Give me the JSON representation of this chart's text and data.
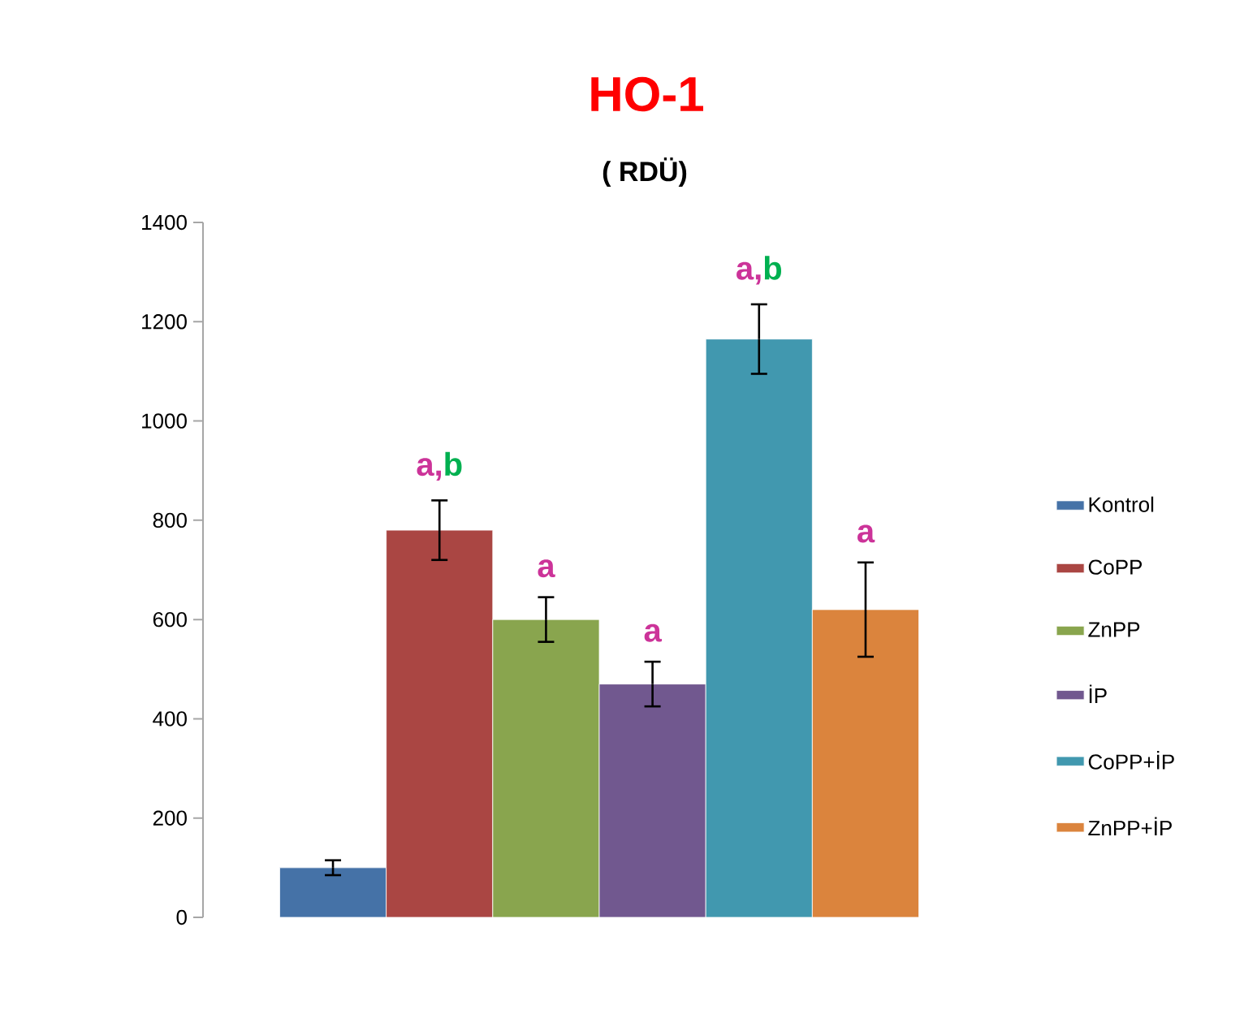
{
  "chart_data": {
    "type": "bar",
    "title": "HO-1",
    "subtitle": "( RDÜ)",
    "categories": [
      null
    ],
    "series": [
      {
        "name": "Kontrol",
        "color": "#4572a7",
        "values": [
          100
        ],
        "errors": [
          15
        ]
      },
      {
        "name": "CoPP",
        "color": "#aa4643",
        "values": [
          780
        ],
        "errors": [
          60
        ]
      },
      {
        "name": "ZnPP",
        "color": "#89a54e",
        "values": [
          600
        ],
        "errors": [
          45
        ]
      },
      {
        "name": "İP",
        "color": "#71588f",
        "values": [
          470
        ],
        "errors": [
          45
        ]
      },
      {
        "name": "CoPP+İP",
        "color": "#4198af",
        "values": [
          1165
        ],
        "errors": [
          70
        ]
      },
      {
        "name": "ZnPP+İP",
        "color": "#db843d",
        "values": [
          620
        ],
        "errors": [
          95
        ]
      }
    ],
    "ylim": [
      0,
      1400
    ],
    "yticks": [
      0,
      200,
      400,
      600,
      800,
      1000,
      1200,
      1400
    ],
    "legend": "right",
    "annotations": [
      "a,",
      "b",
      "a",
      "a",
      "a,",
      "b",
      "a"
    ]
  }
}
